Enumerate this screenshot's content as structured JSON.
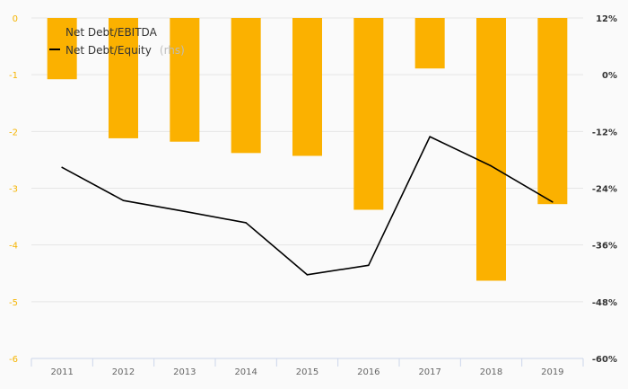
{
  "chart_data": {
    "type": "bar",
    "title": "",
    "xlabel": "",
    "ylabel": "",
    "categories": [
      "2011",
      "2012",
      "2013",
      "2014",
      "2015",
      "2016",
      "2017",
      "2018",
      "2019"
    ],
    "series": [
      {
        "name": "Net Debt/EBITDA",
        "type": "bar",
        "axis": "left",
        "color": "#fbb100",
        "values": [
          -1.08,
          -2.12,
          -2.18,
          -2.38,
          -2.43,
          -3.38,
          -0.89,
          -4.63,
          -3.28
        ]
      },
      {
        "name": "Net Debt/Equity",
        "name_suffix": "(rhs)",
        "type": "line",
        "axis": "right",
        "color": "#000000",
        "values": [
          -19.6,
          -26.6,
          -28.9,
          -31.3,
          -42.3,
          -40.3,
          -13.1,
          -19.3,
          -26.9
        ]
      }
    ],
    "left_axis": {
      "ylim": [
        -6,
        0
      ],
      "ticks": [
        "0",
        "-1",
        "-2",
        "-3",
        "-4",
        "-5",
        "-6"
      ]
    },
    "right_axis": {
      "ylim": [
        -60,
        12
      ],
      "unit": "%",
      "ticks": [
        "12%",
        "0%",
        "-12%",
        "-24%",
        "-36%",
        "-48%",
        "-60%"
      ]
    },
    "grid": true,
    "legend": "top-left"
  }
}
